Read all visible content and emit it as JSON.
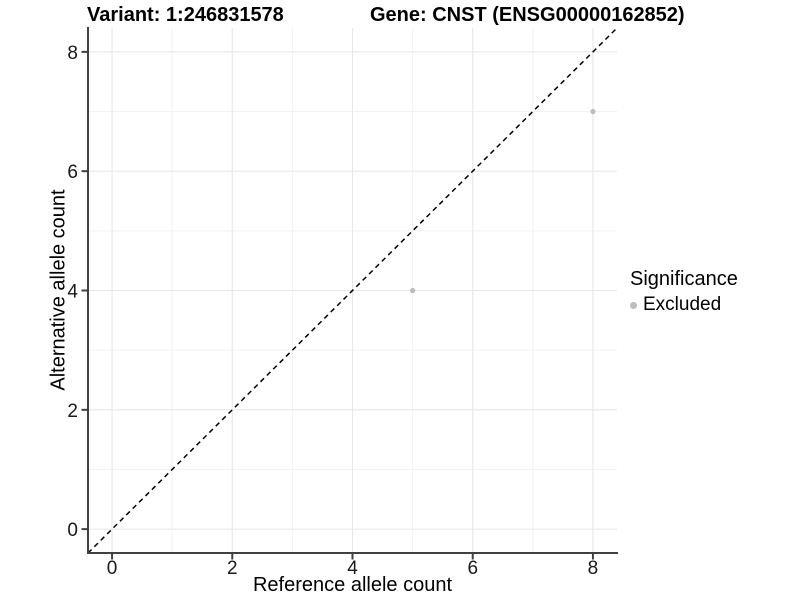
{
  "chart_data": {
    "type": "scatter",
    "title_left": "Variant: 1:246831578",
    "title_right": "Gene: CNST (ENSG00000162852)",
    "xlabel": "Reference allele count",
    "ylabel": "Alternative allele count",
    "xlim": [
      -0.4,
      8.4
    ],
    "ylim": [
      -0.4,
      8.4
    ],
    "x_ticks": [
      0,
      2,
      4,
      6,
      8
    ],
    "y_ticks": [
      0,
      2,
      4,
      6,
      8
    ],
    "x_minor_ticks": [
      1,
      3,
      5,
      7
    ],
    "y_minor_ticks": [
      1,
      3,
      5,
      7
    ],
    "grid": true,
    "reference_line": {
      "kind": "identity",
      "style": "dashed",
      "color": "#000000"
    },
    "series": [
      {
        "name": "Excluded",
        "color": "#bdbdbd",
        "points": [
          {
            "x": 5,
            "y": 4
          },
          {
            "x": 8,
            "y": 7
          }
        ]
      }
    ],
    "legend": {
      "title": "Significance",
      "position": "right",
      "items": [
        {
          "label": "Excluded",
          "color": "#bdbdbd"
        }
      ]
    },
    "colors": {
      "axis_line": "#404040",
      "tick_label": "#1a1a1a",
      "grid_major": "#e7e7e7",
      "grid_minor": "#f2f2f2",
      "background": "#ffffff"
    }
  }
}
